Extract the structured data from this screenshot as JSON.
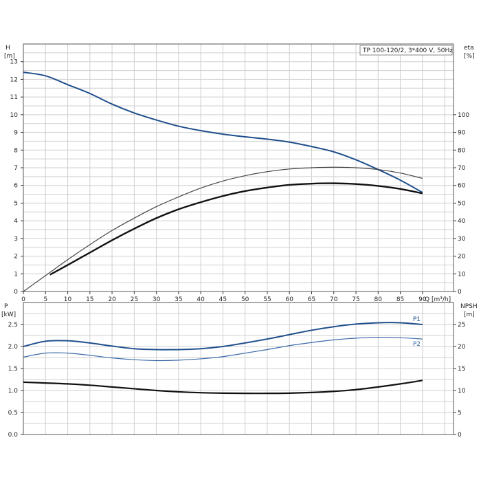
{
  "chart_data": [
    {
      "type": "line",
      "id": "top",
      "title": "TP 100-120/2, 3*400 V, 50Hz",
      "xlabel": "Q [m³/h]",
      "ylabel_left_top": "H",
      "ylabel_left_bottom": "[m]",
      "ylabel_right_top": "eta",
      "ylabel_right_bottom": "[%]",
      "xlim": [
        0,
        97
      ],
      "ylim_left": [
        0,
        14
      ],
      "ylim_right": [
        0,
        140
      ],
      "x_ticks": [
        "0",
        "5",
        "10",
        "15",
        "20",
        "25",
        "30",
        "35",
        "40",
        "45",
        "50",
        "55",
        "60",
        "65",
        "70",
        "75",
        "80",
        "85",
        "90"
      ],
      "y_ticks_left": [
        "0",
        "1",
        "2",
        "3",
        "4",
        "5",
        "6",
        "7",
        "8",
        "9",
        "10",
        "11",
        "12",
        "13"
      ],
      "y_ticks_right": [
        "0",
        "10",
        "20",
        "30",
        "40",
        "50",
        "60",
        "70",
        "80",
        "90",
        "100"
      ],
      "grid": true,
      "series": [
        {
          "axis": "left",
          "color": "#1f4e8c",
          "width": 2,
          "x": [
            0,
            5,
            10,
            15,
            20,
            25,
            30,
            35,
            40,
            45,
            50,
            55,
            60,
            65,
            70,
            75,
            80,
            85,
            90
          ],
          "values": [
            12.4,
            12.2,
            11.7,
            11.2,
            10.6,
            10.1,
            9.7,
            9.35,
            9.1,
            8.9,
            8.75,
            8.62,
            8.45,
            8.2,
            7.9,
            7.45,
            6.9,
            6.3,
            5.6
          ]
        },
        {
          "axis": "right",
          "color": "#444444",
          "width": 1.2,
          "x": [
            0,
            5,
            10,
            15,
            20,
            25,
            30,
            35,
            40,
            45,
            50,
            55,
            60,
            65,
            70,
            75,
            80,
            85,
            90
          ],
          "values": [
            0,
            9,
            18,
            26.5,
            34.5,
            41.5,
            48,
            53.5,
            58.5,
            62.5,
            65.5,
            67.8,
            69.3,
            70,
            70.3,
            70,
            69,
            67,
            64
          ]
        },
        {
          "axis": "right",
          "color": "#111111",
          "width": 2.4,
          "x": [
            6,
            10,
            15,
            20,
            25,
            30,
            35,
            40,
            45,
            50,
            55,
            60,
            65,
            70,
            75,
            80,
            85,
            90
          ],
          "values": [
            9.5,
            15,
            22,
            29,
            35.5,
            41.5,
            46.5,
            50.5,
            54,
            56.8,
            58.8,
            60.3,
            61,
            61.2,
            60.8,
            59.7,
            58,
            55.5
          ]
        }
      ]
    },
    {
      "type": "line",
      "id": "bottom",
      "ylabel_left_top": "P",
      "ylabel_left_bottom": "[kW]",
      "ylabel_right_top": "NPSH",
      "ylabel_right_bottom": "[m]",
      "xlim": [
        0,
        97
      ],
      "ylim_left": [
        0,
        3.0
      ],
      "ylim_right": [
        0,
        30
      ],
      "y_ticks_left": [
        "0.0",
        "0.5",
        "1.0",
        "1.5",
        "2.0",
        "2.5"
      ],
      "y_ticks_right": [
        "0",
        "5",
        "10",
        "15",
        "20",
        "25"
      ],
      "grid": true,
      "series": [
        {
          "name": "P1",
          "axis": "left",
          "color": "#1f4e8c",
          "width": 2,
          "x": [
            0,
            5,
            10,
            15,
            20,
            25,
            30,
            35,
            40,
            45,
            50,
            55,
            60,
            65,
            70,
            75,
            80,
            85,
            90
          ],
          "values": [
            2.0,
            2.12,
            2.13,
            2.08,
            2.01,
            1.95,
            1.93,
            1.93,
            1.95,
            2.0,
            2.08,
            2.17,
            2.27,
            2.37,
            2.45,
            2.51,
            2.54,
            2.54,
            2.5
          ]
        },
        {
          "name": "P2",
          "axis": "left",
          "color": "#3a6aa8",
          "width": 1.2,
          "x": [
            0,
            5,
            10,
            15,
            20,
            25,
            30,
            35,
            40,
            45,
            50,
            55,
            60,
            65,
            70,
            75,
            80,
            85,
            90
          ],
          "values": [
            1.76,
            1.85,
            1.85,
            1.8,
            1.74,
            1.7,
            1.68,
            1.69,
            1.72,
            1.77,
            1.85,
            1.93,
            2.02,
            2.09,
            2.15,
            2.19,
            2.21,
            2.2,
            2.17
          ]
        },
        {
          "axis": "right",
          "color": "#111111",
          "width": 2.2,
          "x": [
            0,
            5,
            10,
            15,
            20,
            25,
            30,
            35,
            40,
            45,
            50,
            55,
            60,
            65,
            70,
            75,
            80,
            85,
            90
          ],
          "values": [
            11.9,
            11.7,
            11.5,
            11.2,
            10.8,
            10.4,
            10.0,
            9.7,
            9.5,
            9.4,
            9.35,
            9.35,
            9.4,
            9.55,
            9.8,
            10.2,
            10.8,
            11.5,
            12.3
          ]
        }
      ]
    }
  ]
}
